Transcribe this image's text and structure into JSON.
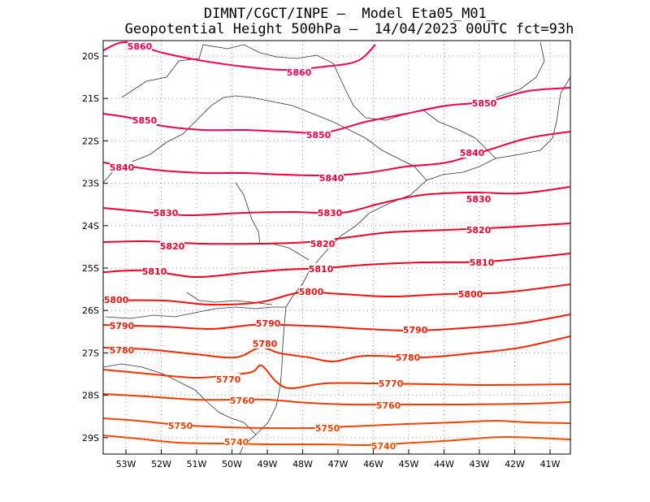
{
  "title_line1": "DIMNT/CGCT/INPE –  Model Eta05_M01_",
  "title_line2": "Geopotential Height 500hPa –  14/04/2023 00UTC fct=93h",
  "lon_labels": [
    "53W",
    "52W",
    "51W",
    "50W",
    "49W",
    "48W",
    "47W",
    "46W",
    "45W",
    "44W",
    "43W",
    "42W",
    "41W"
  ],
  "lat_labels": [
    "20S",
    "21S",
    "22S",
    "23S",
    "24S",
    "25S",
    "26S",
    "27S",
    "28S",
    "29S"
  ],
  "contours": [
    {
      "value": "5860",
      "color": "#ff0050"
    },
    {
      "value": "5850",
      "color": "#f5004a"
    },
    {
      "value": "5840",
      "color": "#f0003c"
    },
    {
      "value": "5830",
      "color": "#f00030"
    },
    {
      "value": "5820",
      "color": "#f00028"
    },
    {
      "value": "5810",
      "color": "#f00020"
    },
    {
      "value": "5800",
      "color": "#f51010"
    },
    {
      "value": "5790",
      "color": "#f51a0a"
    },
    {
      "value": "5780",
      "color": "#f52800"
    },
    {
      "value": "5770",
      "color": "#f53000"
    },
    {
      "value": "5760",
      "color": "#f53a00"
    },
    {
      "value": "5750",
      "color": "#f54200"
    },
    {
      "value": "5740",
      "color": "#f54a00"
    }
  ]
}
